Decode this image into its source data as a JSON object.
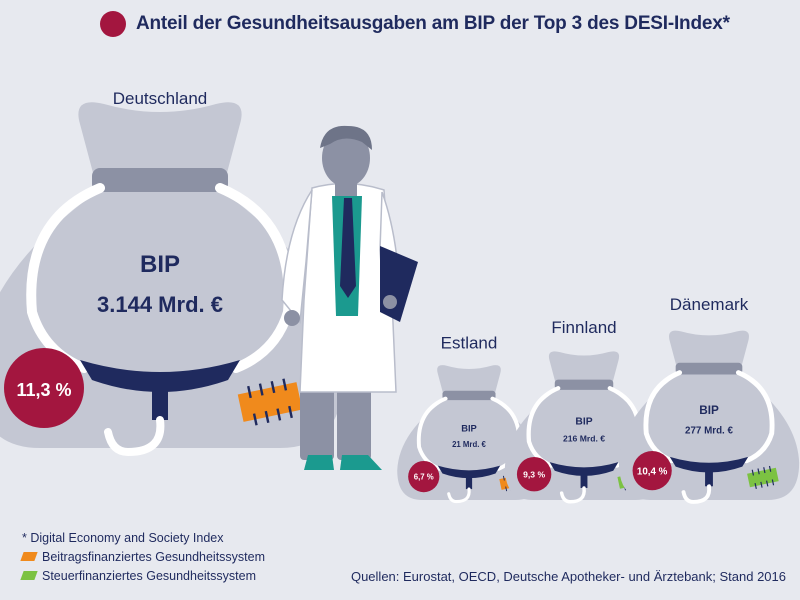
{
  "colors": {
    "navy": "#1f2a5e",
    "accent": "#a3163f",
    "orange": "#f08a1c",
    "green": "#7cc242",
    "bag": "#c4c7d3",
    "background": "#e7e9ef"
  },
  "header": {
    "title": "Anteil der Gesundheitsausgaben am BIP der Top 3 des DESI-Index*"
  },
  "chart_data": {
    "type": "pictogram",
    "title": "Anteil der Gesundheitsausgaben am BIP der Top 3 des DESI-Index*",
    "series_name": "Gesundheitsausgaben am BIP",
    "countries": [
      {
        "name": "Deutschland",
        "bip_label": "BIP",
        "bip_value": "3.144 Mrd. €",
        "bip_mrd_eur": 3144,
        "share_pct": 11.3,
        "share_label": "11,3 %",
        "system": "beitrags",
        "system_icon": "orange-patch-icon"
      },
      {
        "name": "Estland",
        "bip_label": "BIP",
        "bip_value": "21 Mrd. €",
        "bip_mrd_eur": 21,
        "share_pct": 6.7,
        "share_label": "6,7 %",
        "system": "beitrags",
        "system_icon": "orange-patch-icon"
      },
      {
        "name": "Finnland",
        "bip_label": "BIP",
        "bip_value": "216 Mrd. €",
        "bip_mrd_eur": 216,
        "share_pct": 9.3,
        "share_label": "9,3 %",
        "system": "steuer",
        "system_icon": "green-patch-icon"
      },
      {
        "name": "Dänemark",
        "bip_label": "BIP",
        "bip_value": "277 Mrd. €",
        "bip_mrd_eur": 277,
        "share_pct": 10.4,
        "share_label": "10,4 %",
        "system": "steuer",
        "system_icon": "green-patch-icon"
      }
    ]
  },
  "footer": {
    "note": "* Digital Economy and Society Index",
    "legend": [
      {
        "label": "Beitragsfinanziertes Gesundheitssystem",
        "color": "#f08a1c"
      },
      {
        "label": "Steuerfinanziertes Gesundheitssystem",
        "color": "#7cc242"
      }
    ],
    "source": "Quellen: Eurostat, OECD, Deutsche Apotheker- und Ärztebank; Stand 2016"
  }
}
